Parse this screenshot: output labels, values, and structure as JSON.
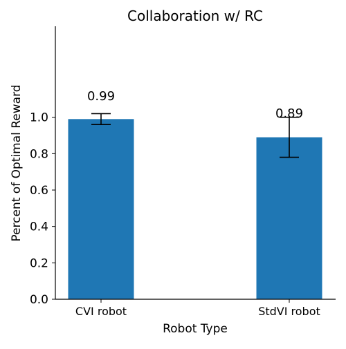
{
  "chart_data": {
    "type": "bar",
    "title": "Collaboration w/ RC",
    "xlabel": "Robot Type",
    "ylabel": "Percent of Optimal Reward",
    "categories": [
      "CVI robot",
      "StdVI robot"
    ],
    "values": [
      0.99,
      0.89
    ],
    "value_labels": [
      "0.99",
      "0.89"
    ],
    "error_lower": [
      0.96,
      0.78
    ],
    "error_upper": [
      1.02,
      1.0
    ],
    "ylim": [
      0,
      1.5
    ],
    "yticks": [
      0.0,
      0.2,
      0.4,
      0.6,
      0.8,
      1.0
    ],
    "ytick_labels": [
      "0.0",
      "0.2",
      "0.4",
      "0.6",
      "0.8",
      "1.0"
    ],
    "bar_color": "#1f77b4",
    "grid": false,
    "legend": "none"
  }
}
